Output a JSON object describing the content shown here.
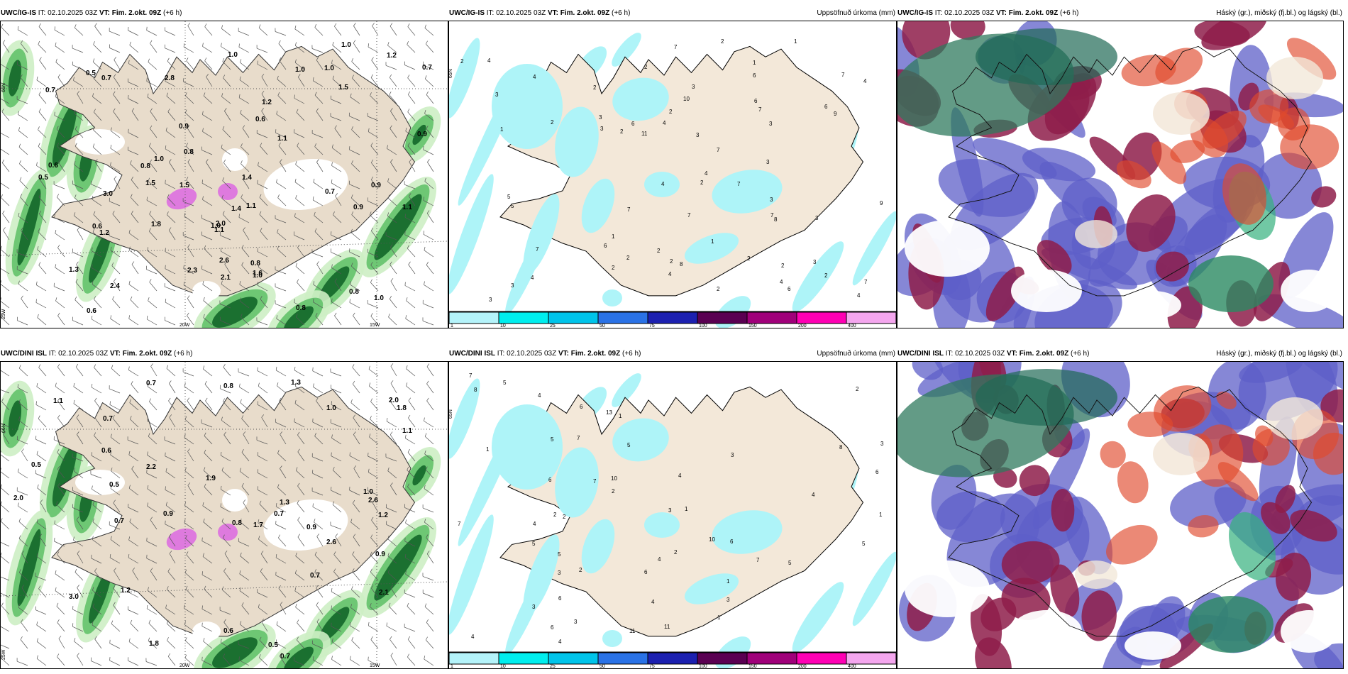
{
  "panels": [
    {
      "id": "t1",
      "model": "UWC/IG-IS",
      "it_label": "IT:",
      "it": "02.10.2025 03Z",
      "vt_label": "VT:",
      "vt": "Fim. 2.okt. 09Z",
      "lead": "(+6 h)",
      "right_title": "",
      "type": "wind"
    },
    {
      "id": "t2",
      "model": "UWC/IG-IS",
      "it_label": "IT:",
      "it": "02.10.2025 03Z",
      "vt_label": "VT:",
      "vt": "Fim. 2.okt. 09Z",
      "lead": "(+6 h)",
      "right_title": "Uppsöfnuð úrkoma (mm)",
      "type": "precip"
    },
    {
      "id": "t3",
      "model": "UWC/IG-IS",
      "it_label": "IT:",
      "it": "02.10.2025 03Z",
      "vt_label": "VT:",
      "vt": "Fim. 2.okt. 09Z",
      "lead": "(+6 h)",
      "right_title": "Háský (gr.), miðský (fj.bl.) og lágský (bl.)",
      "type": "cloud"
    },
    {
      "id": "b1",
      "model": "UWC/DINI ISL",
      "it_label": "IT:",
      "it": "02.10.2025 03Z",
      "vt_label": "VT:",
      "vt": "Fim. 2.okt. 09Z",
      "lead": "(+6 h)",
      "right_title": "",
      "type": "wind"
    },
    {
      "id": "b2",
      "model": "UWC/DINI ISL",
      "it_label": "IT:",
      "it": "02.10.2025 03Z",
      "vt_label": "VT:",
      "vt": "Fim. 2.okt. 09Z",
      "lead": "(+6 h)",
      "right_title": "Uppsöfnuð úrkoma (mm)",
      "type": "precip"
    },
    {
      "id": "b3",
      "model": "UWC/DINI ISL",
      "it_label": "IT:",
      "it": "02.10.2025 03Z",
      "vt_label": "VT:",
      "vt": "Fim. 2.okt. 09Z",
      "lead": "(+6 h)",
      "right_title": "Háský (gr.), miðský (fj.bl.) og lágský (bl.)",
      "type": "cloud"
    }
  ],
  "axis_labels": {
    "lat66": "66N",
    "lat64": "64N",
    "lat65": "65N",
    "lon25": "25W",
    "lon20": "20W",
    "lon15": "15W"
  },
  "colorbar": {
    "ticks": [
      "1",
      "10",
      "25",
      "50",
      "75",
      "100",
      "150",
      "200",
      "400"
    ],
    "colors": [
      "#b4f3fa",
      "#00eeee",
      "#00c4ea",
      "#2a72e6",
      "#1c20b0",
      "#5a0052",
      "#a0007a",
      "#ff00b4",
      "#f4a6ee"
    ]
  },
  "colors": {
    "land": "#f3e8d9",
    "land_wind": "#e8dccb",
    "green_light": "#cdeec4",
    "green_mid": "#63c26a",
    "green_dark": "#166b2c",
    "precip": "#aef4f8",
    "magenta": "#dd6fe0"
  },
  "wind_values_top": [
    "1.2",
    "0.9",
    "1.0",
    "0.6",
    "0.8",
    "1.5",
    "0.6",
    "1.1",
    "1.1",
    "0.9",
    "1.0",
    "2.0",
    "1.8",
    "1.2",
    "1.0",
    "0.5",
    "0.9",
    "0.7",
    "1.0",
    "1.4",
    "0.7",
    "2.6",
    "0.8",
    "1.4",
    "1.0",
    "0.7",
    "1.5",
    "1.5",
    "0.5",
    "0.9",
    "1.6",
    "1.1",
    "2.1",
    "0.6",
    "0.8",
    "1.0",
    "1.3",
    "0.7",
    "2.3",
    "0.8",
    "1.0",
    "2.8",
    "3.0",
    "0.6",
    "1.0",
    "0.8",
    "2.4",
    "1.2",
    "1.1"
  ],
  "wind_values_bottom": [
    "0.7",
    "0.7",
    "1.0",
    "0.7",
    "1.2",
    "0.7",
    "0.5",
    "0.9",
    "0.6",
    "1.9",
    "0.8",
    "0.9",
    "0.8",
    "1.3",
    "1.3",
    "3.0",
    "1.1",
    "0.5",
    "0.7",
    "0.6",
    "2.0",
    "1.8",
    "2.2",
    "2.0",
    "1.7",
    "2.6",
    "2.1",
    "0.9",
    "1.0",
    "2.6",
    "0.5",
    "1.8",
    "1.2",
    "1.1",
    "0.7"
  ],
  "precip_values_top": [
    "3",
    "3",
    "4",
    "7",
    "2",
    "2",
    "3",
    "1",
    "2",
    "6",
    "4",
    "3",
    "2",
    "7",
    "2",
    "3",
    "7",
    "5",
    "4",
    "4",
    "2",
    "4",
    "4",
    "7",
    "8",
    "6",
    "6",
    "10",
    "9",
    "1",
    "2",
    "7",
    "3",
    "3",
    "2",
    "2",
    "2",
    "3",
    "1",
    "2",
    "2",
    "1",
    "2",
    "2",
    "3",
    "2",
    "2",
    "8",
    "9",
    "7",
    "3",
    "4",
    "4",
    "4",
    "7",
    "4",
    "6",
    "11",
    "7",
    "3",
    "3",
    "6",
    "7",
    "7",
    "6",
    "5",
    "1"
  ],
  "precip_values_bottom": [
    "8",
    "7",
    "7",
    "2",
    "3",
    "1",
    "1",
    "2",
    "4",
    "7",
    "3",
    "1",
    "4",
    "5",
    "4",
    "7",
    "6",
    "3",
    "7",
    "10",
    "6",
    "4",
    "3",
    "2",
    "4",
    "2",
    "5",
    "5",
    "11",
    "13",
    "10",
    "6",
    "8",
    "5",
    "3",
    "6",
    "4",
    "2",
    "3",
    "3",
    "5",
    "11",
    "6",
    "5",
    "5",
    "4",
    "6",
    "4",
    "1",
    "1",
    "1",
    "2",
    "6"
  ]
}
